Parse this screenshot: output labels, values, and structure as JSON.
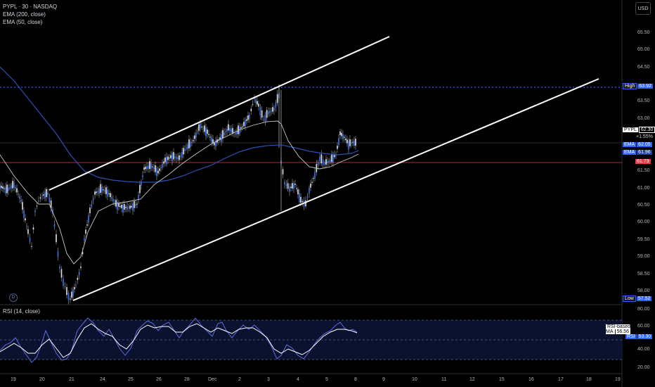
{
  "legend": {
    "symbol": "PYPL · 30 · NASDAQ",
    "ema200": "EMA (200, close)",
    "ema50": "EMA (50, close)"
  },
  "currency_button": "USD",
  "rsi_legend": "RSI (14, close)",
  "price_axis": {
    "labels": [
      "65.50",
      "65.00",
      "64.50",
      "63.50",
      "63.00",
      "61.50",
      "61.00",
      "60.50",
      "60.00",
      "59.50",
      "59.00",
      "58.50",
      "58.00"
    ]
  },
  "price_tags": {
    "high_label": "High",
    "high_value": "63.92",
    "symbol_label": "PYPL",
    "symbol_value": "62.30",
    "symbol_change": "+1.55%",
    "ema1_label": "EMA",
    "ema1_value": "62.05",
    "ema2_label": "EMA",
    "ema2_value": "61.96",
    "red_value": "61.73",
    "low_label": "Low",
    "low_value": "57.52"
  },
  "rsi_axis": {
    "labels": [
      "80.00",
      "60.00",
      "40.00",
      "20.00"
    ]
  },
  "rsi_tags": {
    "ma_label": "RSI-based MA",
    "ma_value": "56.56",
    "rsi_label": "RSI",
    "rsi_value": "53.30"
  },
  "time_axis": {
    "labels": [
      "19",
      "20",
      "21",
      "24",
      "25",
      "26",
      "28",
      "Dec",
      "2",
      "3",
      "4",
      "5",
      "8",
      "9",
      "10",
      "11",
      "12",
      "15",
      "16",
      "17",
      "18",
      "19"
    ]
  },
  "colors": {
    "candle": "#3a73f0",
    "wick": "#c0c4cc",
    "high_line": "#2962ff",
    "red_line": "#f23645",
    "channel": "#ffffff",
    "ema50": "#c8c8c8",
    "ema200": "#2d50b4"
  }
}
